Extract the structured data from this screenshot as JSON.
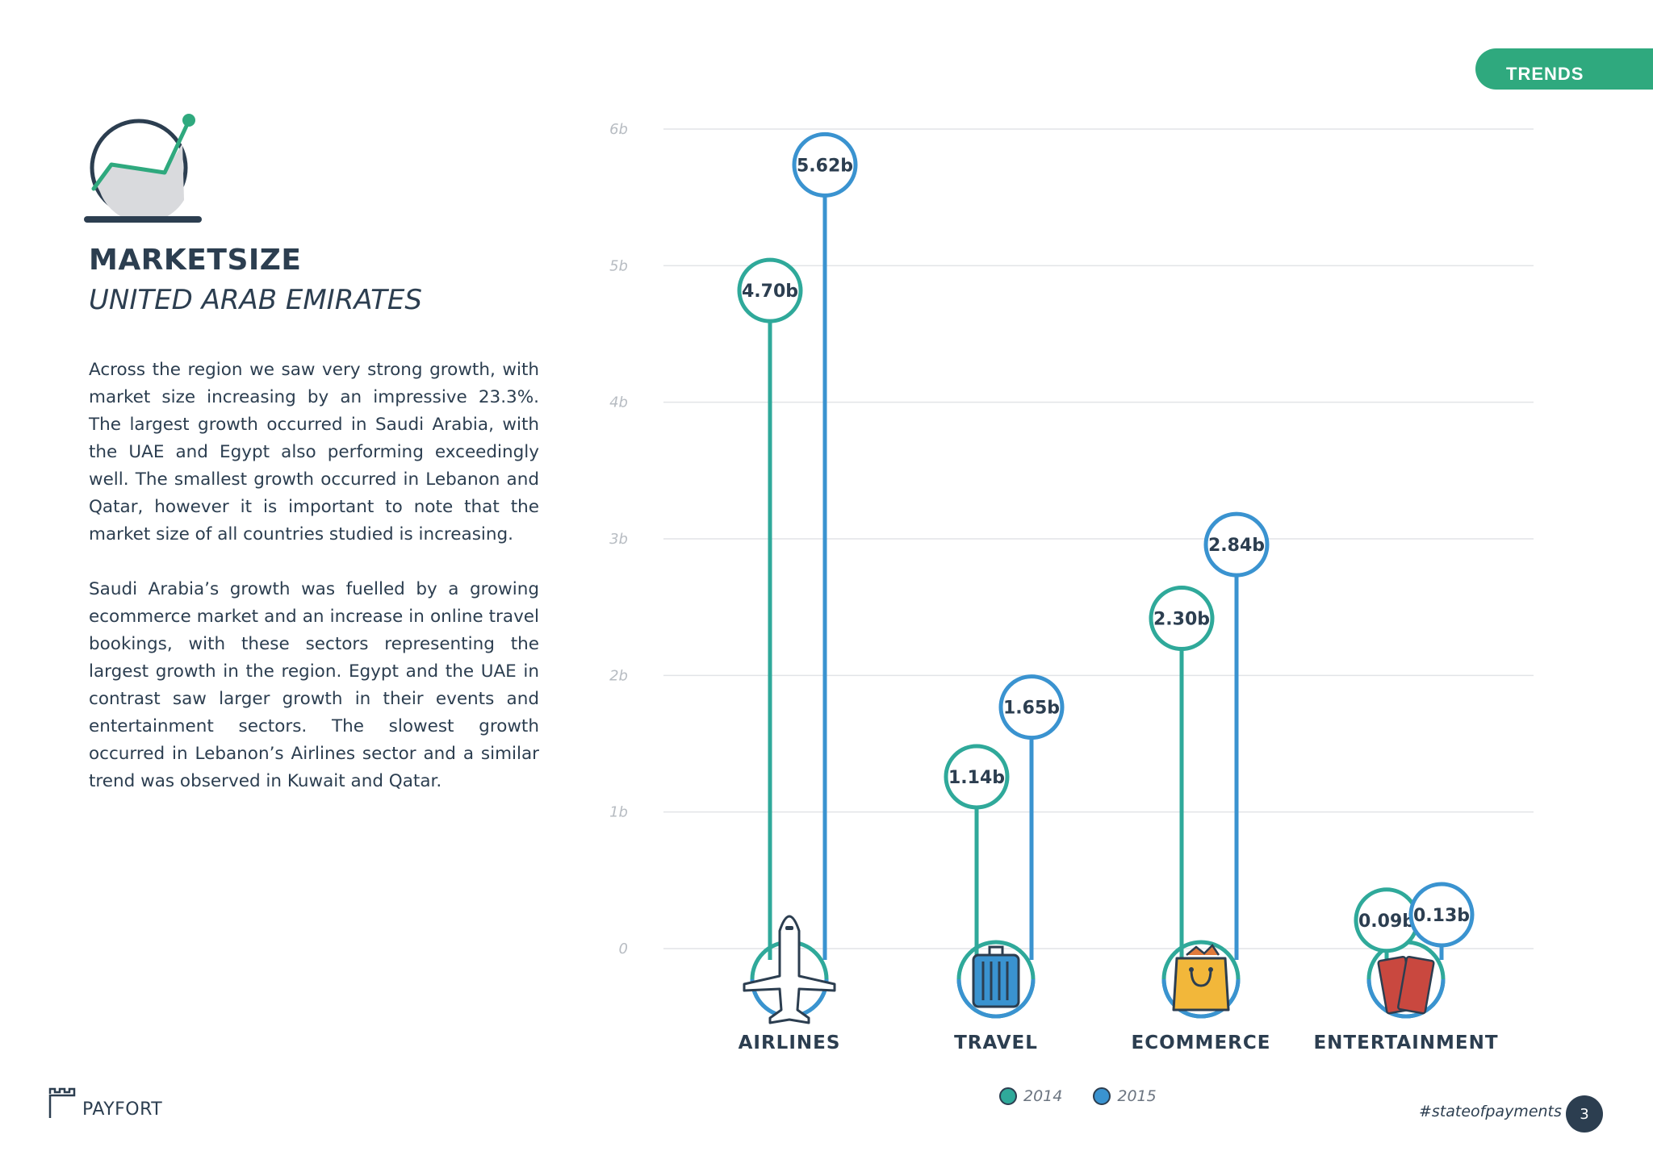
{
  "header": {
    "tab_label": "TRENDS"
  },
  "section": {
    "title": "MARKETSIZE",
    "subtitle": "UNITED ARAB EMIRATES",
    "paragraphs": [
      "Across the region we saw very strong growth, with market size increasing by an impressive 23.3%. The largest growth occurred in Saudi Arabia, with the UAE and Egypt also performing exceedingly well. The smallest growth occurred in Lebanon and Qatar, however it is important to note that the market size of all countries studied is increasing.",
      "Saudi Arabia’s growth was fuelled by a growing ecommerce market and an increase in online travel bookings, with these sectors representing the largest growth in the region. Egypt and the UAE in contrast saw larger growth in their events and entertainment sectors. The slowest growth occurred in Lebanon’s Airlines sector and a similar trend was observed in Kuwait and Qatar."
    ]
  },
  "chart_data": {
    "type": "bar",
    "categories": [
      "AIRLINES",
      "TRAVEL",
      "ECOMMERCE",
      "ENTERTAINMENT"
    ],
    "series": [
      {
        "name": "2014",
        "color": "#2fa99a",
        "values": [
          4.7,
          1.14,
          2.3,
          0.09
        ],
        "labels": [
          "4.70b",
          "1.14b",
          "2.30b",
          "0.09b"
        ]
      },
      {
        "name": "2015",
        "color": "#3a93d0",
        "values": [
          5.62,
          1.65,
          2.84,
          0.13
        ],
        "labels": [
          "5.62b",
          "1.65b",
          "2.84b",
          "0.13b"
        ]
      }
    ],
    "yticks": [
      0,
      1,
      2,
      3,
      4,
      5,
      6
    ],
    "ytick_labels": [
      "0",
      "1b",
      "2b",
      "3b",
      "4b",
      "5b",
      "6b"
    ],
    "ylim": [
      0,
      6
    ],
    "grid": true,
    "legend_placement": "bottom-center",
    "category_icons": [
      "airplane-icon",
      "suitcase-icon",
      "shopping-bag-icon",
      "tickets-icon"
    ]
  },
  "legend": [
    {
      "label": "2014",
      "color": "#2fa99a"
    },
    {
      "label": "2015",
      "color": "#3a93d0"
    }
  ],
  "footer": {
    "brand": "PAYFORT",
    "hashtag": "#stateofpayments",
    "page_number": "3"
  }
}
